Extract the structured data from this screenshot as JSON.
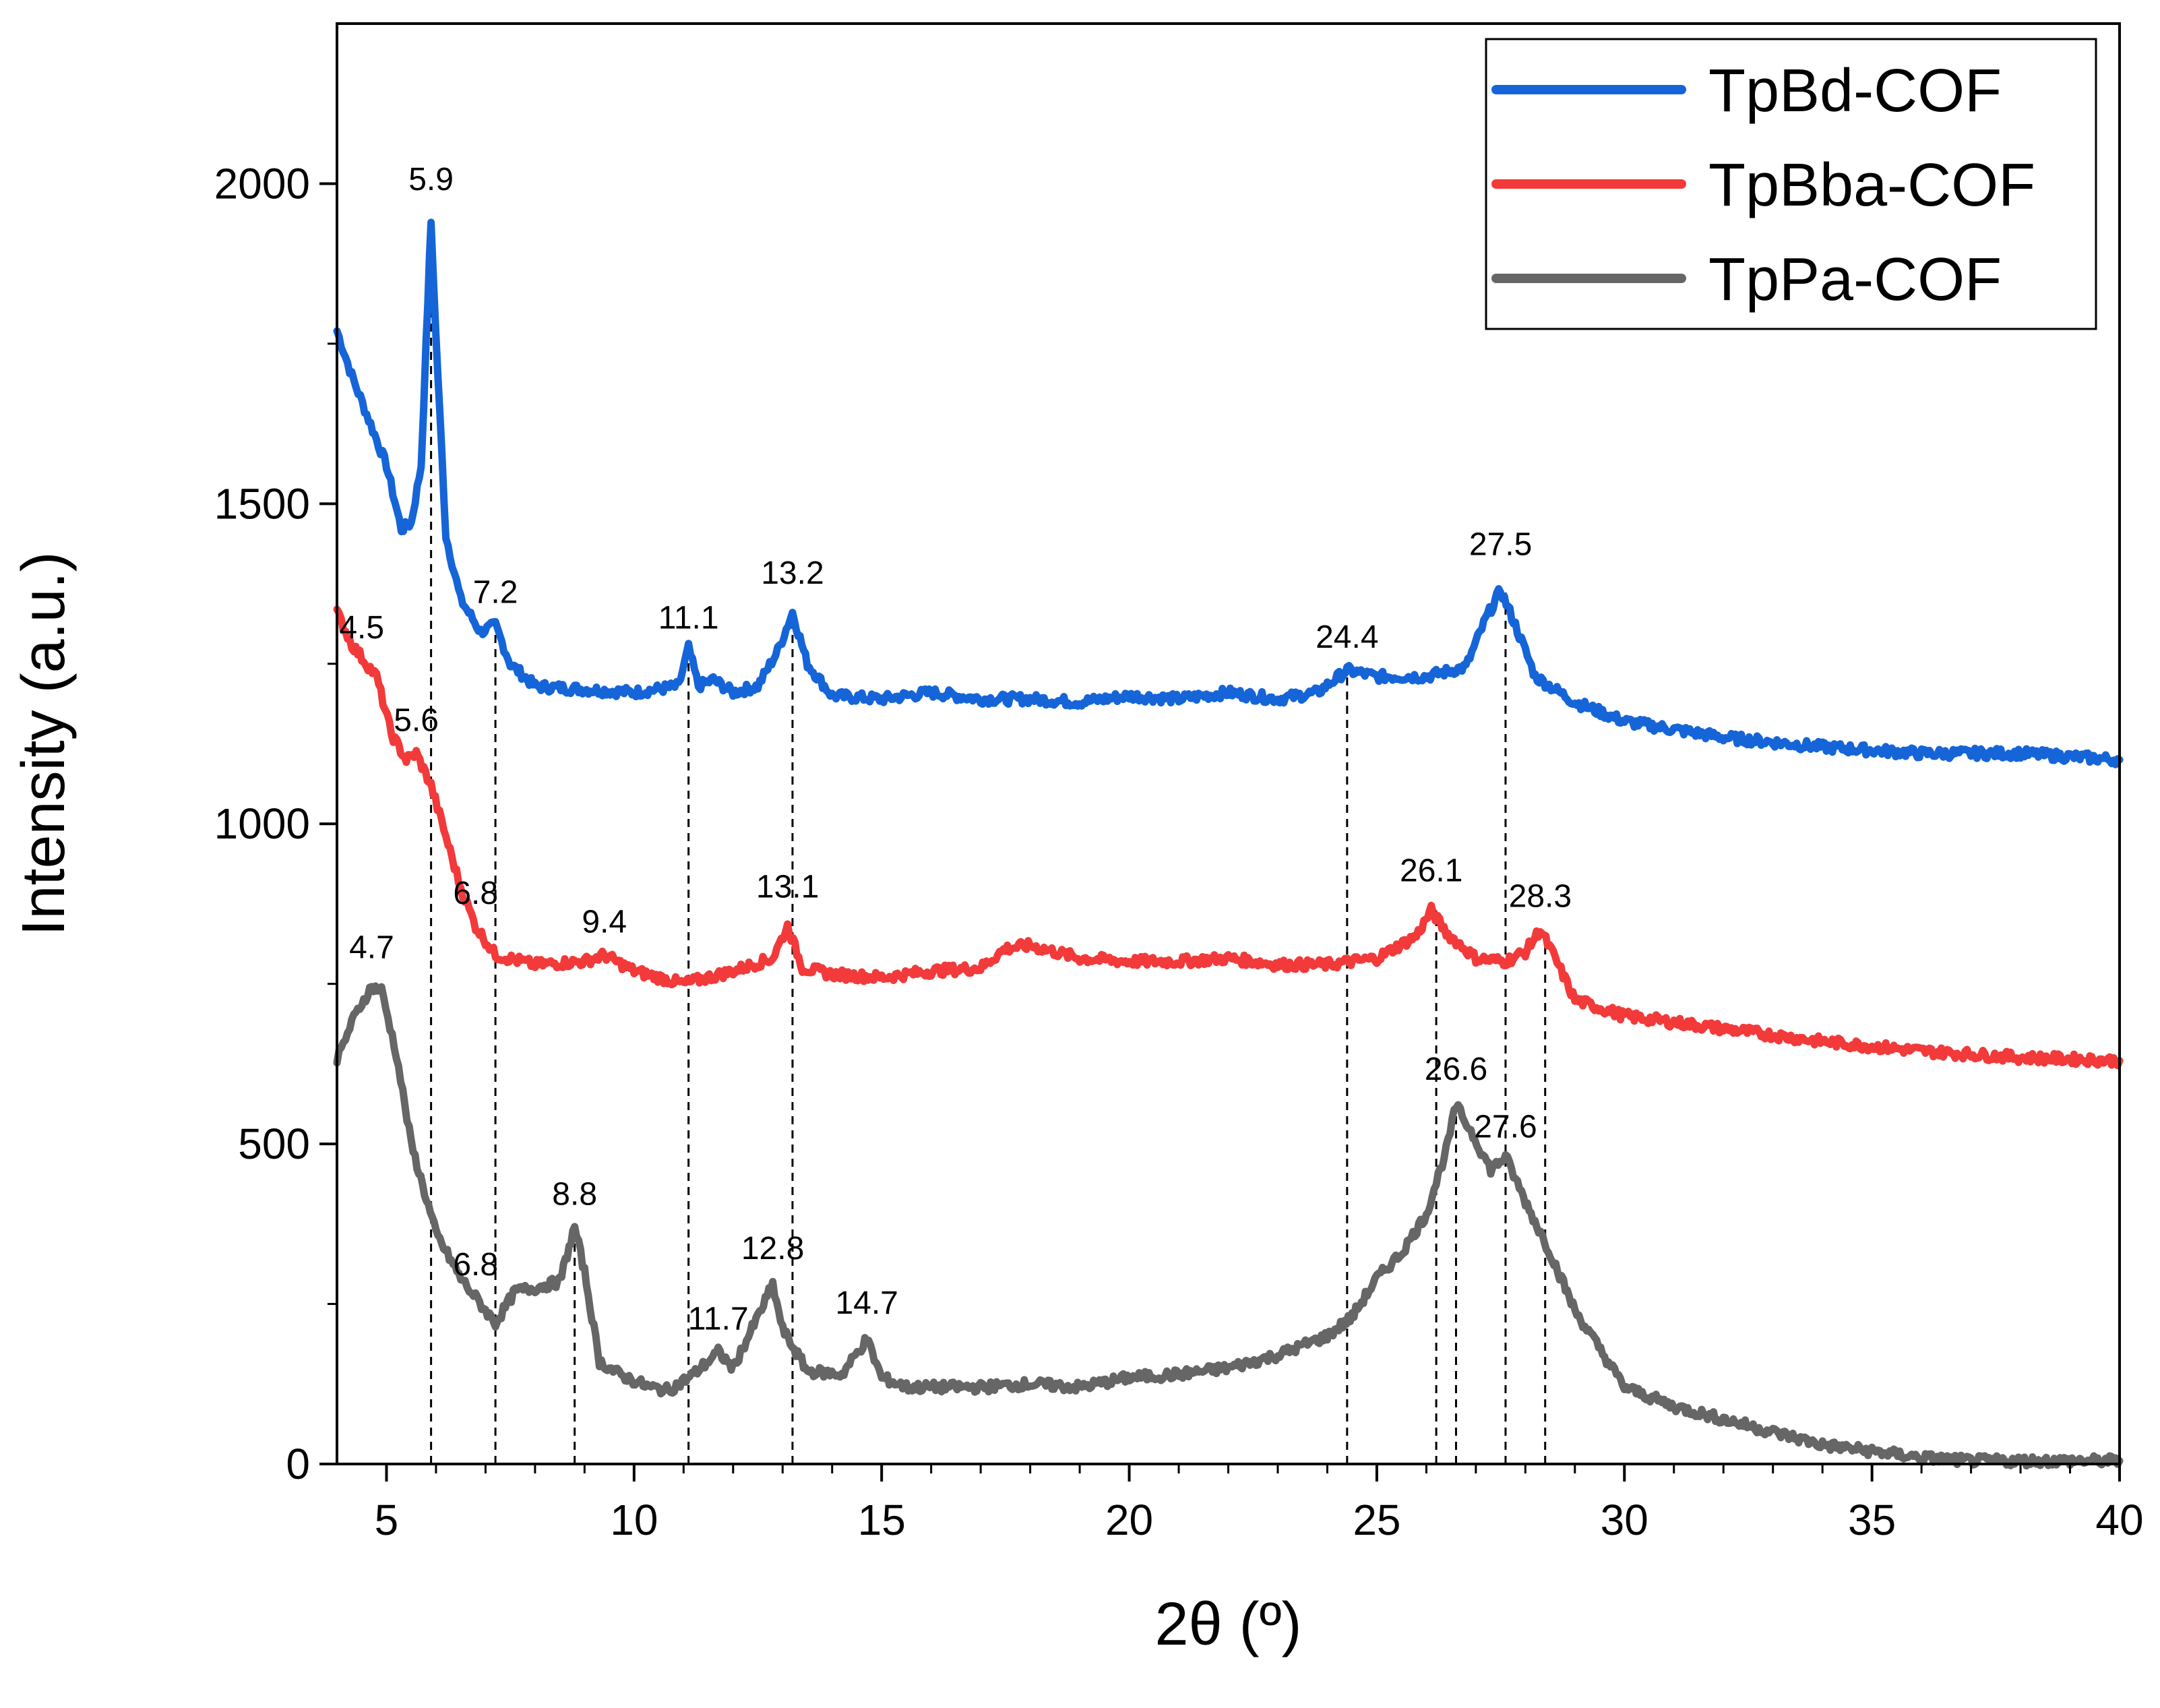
{
  "chart_data": {
    "type": "line",
    "title": "",
    "xlabel": "2θ (º)",
    "ylabel": "Intensity (a.u.)",
    "xlim": [
      4,
      40
    ],
    "ylim": [
      0,
      2250
    ],
    "grid": false,
    "legend_position": "top-right",
    "xticks": [
      5,
      10,
      15,
      20,
      25,
      30,
      35,
      40
    ],
    "yticks": [
      0,
      500,
      1000,
      1500,
      2000
    ],
    "series": [
      {
        "name": "TpBd-COF",
        "color": "#1565d8",
        "x": [
          4.0,
          4.3,
          4.6,
          5.0,
          5.3,
          5.5,
          5.7,
          5.8,
          5.9,
          6.0,
          6.2,
          6.5,
          6.9,
          7.2,
          7.5,
          8.0,
          9.0,
          10.0,
          10.9,
          11.1,
          11.3,
          11.6,
          12.0,
          12.5,
          12.9,
          13.2,
          13.5,
          14.0,
          15.0,
          16.0,
          17.0,
          18.0,
          19.0,
          20.0,
          21.0,
          22.0,
          23.0,
          23.8,
          24.4,
          25.0,
          26.0,
          26.8,
          27.2,
          27.5,
          27.8,
          28.2,
          29.0,
          30.0,
          32.0,
          34.0,
          36.0,
          38.0,
          40.0
        ],
        "y": [
          1770,
          1700,
          1640,
          1560,
          1460,
          1470,
          1560,
          1750,
          1940,
          1760,
          1450,
          1350,
          1300,
          1310,
          1250,
          1215,
          1210,
          1205,
          1215,
          1275,
          1215,
          1225,
          1205,
          1215,
          1270,
          1330,
          1250,
          1200,
          1195,
          1205,
          1195,
          1195,
          1190,
          1200,
          1195,
          1205,
          1195,
          1205,
          1240,
          1230,
          1230,
          1245,
          1320,
          1365,
          1310,
          1230,
          1190,
          1160,
          1135,
          1120,
          1110,
          1110,
          1100
        ]
      },
      {
        "name": "TpBba-COF",
        "color": "#f23a3a",
        "x": [
          4.0,
          4.3,
          4.5,
          4.8,
          5.1,
          5.4,
          5.6,
          5.9,
          6.2,
          6.5,
          6.8,
          7.2,
          8.0,
          9.0,
          9.4,
          10.0,
          11.0,
          12.0,
          12.8,
          13.1,
          13.4,
          14.0,
          15.0,
          16.0,
          17.0,
          17.5,
          18.0,
          19.0,
          20.0,
          21.0,
          22.0,
          23.0,
          24.0,
          25.0,
          25.8,
          26.1,
          26.4,
          27.0,
          27.6,
          28.0,
          28.3,
          28.6,
          29.0,
          30.0,
          32.0,
          34.0,
          36.0,
          38.0,
          40.0
        ],
        "y": [
          1330,
          1280,
          1260,
          1230,
          1140,
          1100,
          1110,
          1060,
          980,
          900,
          840,
          795,
          780,
          785,
          795,
          770,
          750,
          770,
          790,
          840,
          775,
          765,
          760,
          770,
          775,
          805,
          810,
          790,
          785,
          785,
          790,
          780,
          780,
          790,
          825,
          865,
          830,
          790,
          785,
          800,
          835,
          790,
          725,
          700,
          680,
          660,
          645,
          635,
          630
        ]
      },
      {
        "name": "TpPa-COF",
        "color": "#666666",
        "x": [
          4.0,
          4.3,
          4.5,
          4.7,
          4.9,
          5.2,
          5.5,
          6.0,
          6.5,
          6.8,
          7.2,
          7.6,
          8.0,
          8.5,
          8.8,
          9.0,
          9.3,
          9.7,
          10.3,
          10.7,
          11.2,
          11.7,
          12.0,
          12.5,
          12.8,
          13.0,
          13.5,
          14.2,
          14.7,
          15.0,
          15.5,
          17.0,
          18.0,
          19.0,
          20.0,
          21.0,
          22.0,
          23.0,
          24.0,
          24.5,
          25.0,
          25.5,
          26.0,
          26.4,
          26.6,
          26.9,
          27.3,
          27.6,
          28.0,
          28.5,
          29.0,
          30.0,
          31.0,
          32.0,
          33.0,
          34.0,
          35.0,
          36.0,
          37.0,
          38.0,
          39.0,
          40.0
        ],
        "y": [
          630,
          690,
          720,
          745,
          740,
          640,
          500,
          360,
          290,
          260,
          220,
          270,
          275,
          285,
          370,
          300,
          160,
          140,
          120,
          115,
          140,
          175,
          150,
          230,
          280,
          210,
          145,
          140,
          195,
          135,
          120,
          120,
          125,
          120,
          135,
          140,
          150,
          170,
          200,
          230,
          290,
          330,
          390,
          490,
          560,
          520,
          460,
          480,
          410,
          330,
          240,
          120,
          90,
          70,
          50,
          30,
          20,
          10,
          5,
          5,
          5,
          5
        ]
      }
    ],
    "reference_lines_x": [
      5.9,
      7.2,
      8.8,
      11.1,
      13.2,
      24.4,
      26.2,
      26.6,
      27.6,
      28.4
    ],
    "annotations": [
      {
        "text": "5.9",
        "x": 5.9,
        "y": 1990
      },
      {
        "text": "7.2",
        "x": 7.2,
        "y": 1345
      },
      {
        "text": "11.1",
        "x": 11.1,
        "y": 1305
      },
      {
        "text": "13.2",
        "x": 13.2,
        "y": 1375
      },
      {
        "text": "24.4",
        "x": 24.4,
        "y": 1275
      },
      {
        "text": "27.5",
        "x": 27.5,
        "y": 1420
      },
      {
        "text": "4.5",
        "x": 4.5,
        "y": 1290
      },
      {
        "text": "5.6",
        "x": 5.6,
        "y": 1145
      },
      {
        "text": "6.8",
        "x": 6.8,
        "y": 875
      },
      {
        "text": "9.4",
        "x": 9.4,
        "y": 830
      },
      {
        "text": "13.1",
        "x": 13.1,
        "y": 885
      },
      {
        "text": "26.1",
        "x": 26.1,
        "y": 910
      },
      {
        "text": "28.3",
        "x": 28.3,
        "y": 870
      },
      {
        "text": "4.7",
        "x": 4.7,
        "y": 790
      },
      {
        "text": "6.8",
        "x": 6.8,
        "y": 295
      },
      {
        "text": "8.8",
        "x": 8.8,
        "y": 405
      },
      {
        "text": "11.7",
        "x": 11.7,
        "y": 210
      },
      {
        "text": "12.8",
        "x": 12.8,
        "y": 320
      },
      {
        "text": "14.7",
        "x": 14.7,
        "y": 235
      },
      {
        "text": "26.6",
        "x": 26.6,
        "y": 600
      },
      {
        "text": "27.6",
        "x": 27.6,
        "y": 510
      }
    ]
  }
}
